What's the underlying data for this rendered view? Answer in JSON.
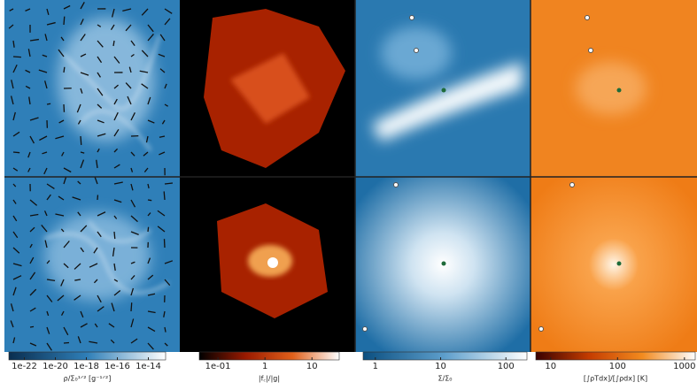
{
  "figure": {
    "colorbars": [
      {
        "label": "ρ/Σ₀¹ᐟ² [g⁻¹ᐟ²]",
        "scale": "log",
        "lim": [
          1e-23,
          1.3e-13
        ],
        "colors": [
          "#0a2e4f",
          "#2f7fb8",
          "#ffffff"
        ],
        "ticks": [
          {
            "value": 1e-22,
            "label": "1e-22"
          },
          {
            "value": 1e-20,
            "label": "1e-20"
          },
          {
            "value": 1e-18,
            "label": "1e-18"
          },
          {
            "value": 1e-16,
            "label": "1e-16"
          },
          {
            "value": 1e-14,
            "label": "1e-14"
          }
        ]
      },
      {
        "label": "|f꜀|/|g|",
        "scale": "log",
        "lim": [
          0.04,
          38
        ],
        "colors": [
          "#000000",
          "#9a1a00",
          "#e0601a",
          "#ffffff"
        ],
        "ticks": [
          {
            "value": 0.1,
            "label": "1e-01"
          },
          1,
          10
        ]
      },
      {
        "label": "Σ/Σ₀",
        "scale": "log",
        "lim": [
          0.65,
          210
        ],
        "colors": [
          "#0b4f80",
          "#5e9fcc",
          "#ffffff"
        ],
        "ticks": [
          1,
          10,
          100
        ]
      },
      {
        "label": "[∫ρTdx]/[∫ρdx] [K]",
        "scale": "log",
        "lim": [
          6,
          1450
        ],
        "colors": [
          "#3a0000",
          "#c43c00",
          "#f28a1e",
          "#ffffff"
        ],
        "ticks": [
          10,
          100,
          1000
        ]
      }
    ]
  }
}
